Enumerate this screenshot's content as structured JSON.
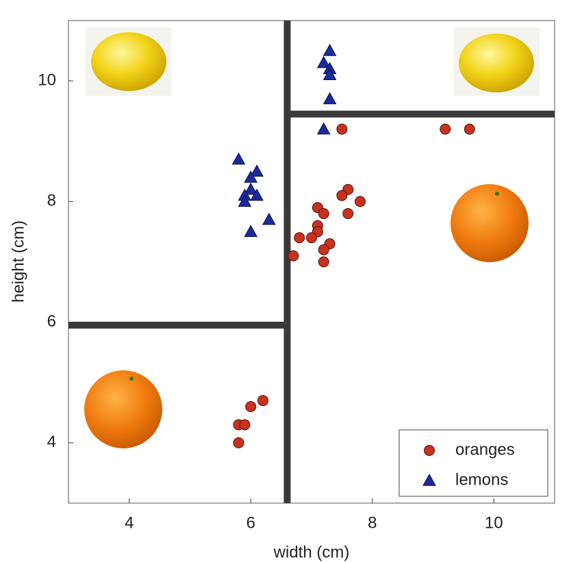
{
  "chart_data": {
    "type": "scatter",
    "xlabel": "width (cm)",
    "ylabel": "height (cm)",
    "xlim": [
      3,
      11
    ],
    "ylim": [
      3,
      11
    ],
    "xticks": [
      4,
      6,
      8,
      10
    ],
    "yticks": [
      4,
      6,
      8,
      10
    ],
    "legend": "lower right",
    "series": [
      {
        "name": "oranges",
        "color": "#c8321e",
        "marker": "circle",
        "x": [
          7.5,
          9.2,
          9.6,
          7.6,
          7.5,
          7.8,
          7.1,
          7.2,
          7.6,
          7.1,
          7.1,
          6.8,
          7.0,
          7.3,
          7.2,
          6.7,
          7.2,
          6.2,
          6.0,
          5.8,
          5.9,
          5.8
        ],
        "y": [
          9.2,
          9.2,
          9.2,
          8.2,
          8.1,
          8.0,
          7.9,
          7.8,
          7.8,
          7.6,
          7.5,
          7.4,
          7.4,
          7.3,
          7.2,
          7.1,
          7.0,
          4.7,
          4.6,
          4.3,
          4.3,
          4.0
        ]
      },
      {
        "name": "lemons",
        "color": "#1a2a9a",
        "marker": "triangle",
        "x": [
          7.3,
          7.2,
          7.3,
          7.3,
          7.3,
          7.2,
          5.8,
          6.1,
          6.0,
          6.0,
          5.9,
          6.1,
          5.9,
          6.3,
          6.0
        ],
        "y": [
          10.5,
          10.3,
          10.2,
          10.1,
          9.7,
          9.2,
          8.7,
          8.5,
          8.4,
          8.2,
          8.1,
          8.1,
          8.0,
          7.7,
          7.5
        ]
      }
    ],
    "boundaries": [
      {
        "x": [
          6.6,
          6.6
        ],
        "y": [
          3,
          11
        ]
      },
      {
        "x": [
          3,
          6.6
        ],
        "y": [
          5.95,
          5.95
        ]
      },
      {
        "x": [
          6.6,
          11
        ],
        "y": [
          9.45,
          9.45
        ]
      }
    ]
  }
}
